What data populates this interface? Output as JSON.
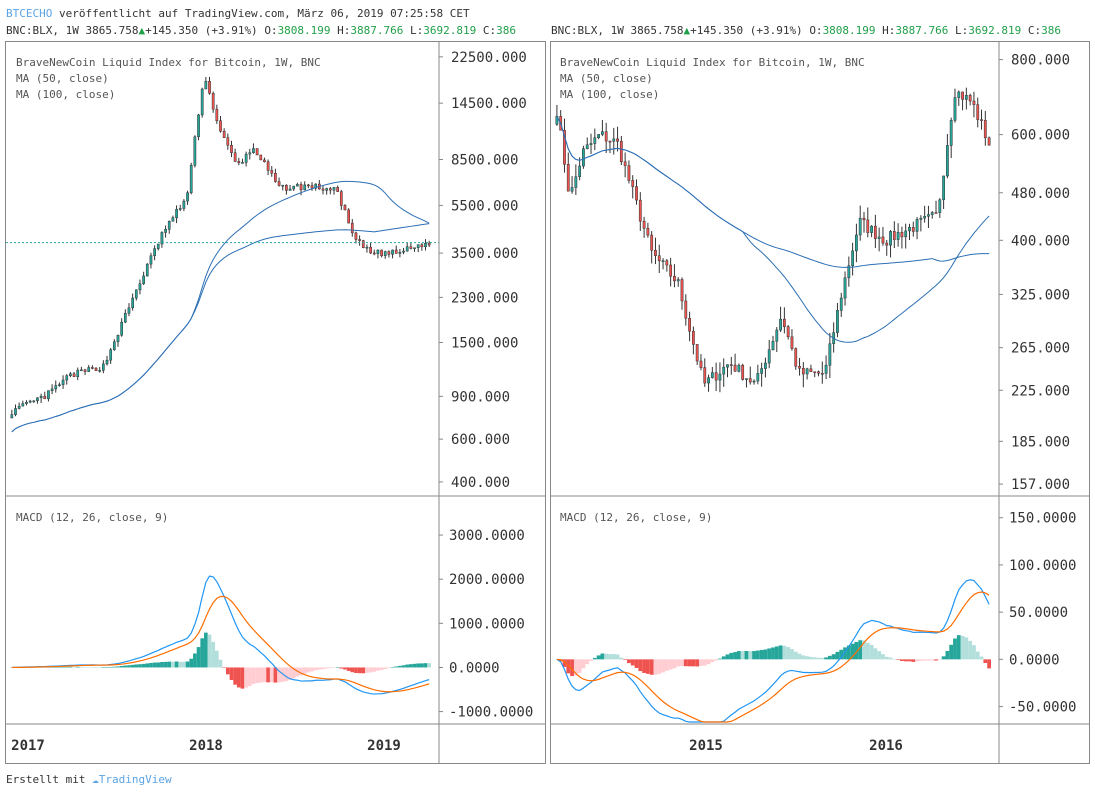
{
  "header": {
    "brand": "BTCECHO",
    "published": "veröffentlicht auf TradingView.com, März 06, 2019 07:25:58 CET",
    "ticker": {
      "symbol": "BNC:BLX, 1W",
      "last": "3865.758",
      "change": "+145.350",
      "change_pct": "(+3.91%)",
      "o_label": "O:",
      "o": "3808.199",
      "h_label": "H:",
      "h": "3887.766",
      "l_label": "L:",
      "l": "3692.819",
      "c_label": "C:",
      "c": "386"
    }
  },
  "colors": {
    "candle_up": "#26a69a",
    "candle_down": "#ef5350",
    "ma_line": "#2c6fb5",
    "macd_line": "#2196f3",
    "signal_line": "#ff6d00",
    "hist_up_strong": "#26a69a",
    "hist_up_weak": "#b2dfdb",
    "hist_down_strong": "#ef5350",
    "hist_down_weak": "#ffcdd2"
  },
  "chart_data": [
    {
      "type": "candlestick",
      "title": "BraveNewCoin Liquid Index for Bitcoin, 1W, BNC",
      "legend": [
        "MA (50, close)",
        "MA (100, close)"
      ],
      "y_scale": "log",
      "y_ticks": [
        "22500.000",
        "14500.000",
        "8500.000",
        "5500.000",
        "3500.000",
        "2300.000",
        "1500.000",
        "900.000",
        "600.000",
        "400.000"
      ],
      "x_ticks": [
        "2017",
        "2018",
        "2019"
      ],
      "last_price": 3865.758,
      "approx_close_path": [
        [
          0,
          780
        ],
        [
          0.08,
          900
        ],
        [
          0.14,
          1100
        ],
        [
          0.22,
          1200
        ],
        [
          0.3,
          2500
        ],
        [
          0.36,
          4200
        ],
        [
          0.42,
          6000
        ],
        [
          0.46,
          19000
        ],
        [
          0.5,
          11000
        ],
        [
          0.54,
          8000
        ],
        [
          0.58,
          9500
        ],
        [
          0.64,
          6500
        ],
        [
          0.72,
          6600
        ],
        [
          0.78,
          6300
        ],
        [
          0.82,
          4000
        ],
        [
          0.86,
          3500
        ],
        [
          0.92,
          3500
        ],
        [
          1.0,
          3866
        ]
      ],
      "macd": {
        "label": "MACD (12, 26, close, 9)",
        "y_ticks": [
          "3000.0000",
          "2000.0000",
          "1000.0000",
          "0.0000",
          "-1000.0000"
        ]
      }
    },
    {
      "type": "candlestick",
      "title": "BraveNewCoin Liquid Index for Bitcoin, 1W, BNC",
      "legend": [
        "MA (50, close)",
        "MA (100, close)"
      ],
      "y_scale": "log",
      "y_ticks": [
        "800.000",
        "600.000",
        "480.000",
        "400.000",
        "325.000",
        "265.000",
        "225.000",
        "185.000",
        "157.000"
      ],
      "x_ticks": [
        "2015",
        "2016"
      ],
      "approx_close_path": [
        [
          0,
          660
        ],
        [
          0.03,
          470
        ],
        [
          0.06,
          560
        ],
        [
          0.1,
          600
        ],
        [
          0.14,
          580
        ],
        [
          0.18,
          470
        ],
        [
          0.22,
          380
        ],
        [
          0.28,
          340
        ],
        [
          0.34,
          230
        ],
        [
          0.4,
          250
        ],
        [
          0.46,
          230
        ],
        [
          0.52,
          300
        ],
        [
          0.56,
          240
        ],
        [
          0.62,
          240
        ],
        [
          0.66,
          330
        ],
        [
          0.7,
          430
        ],
        [
          0.76,
          400
        ],
        [
          0.82,
          420
        ],
        [
          0.88,
          440
        ],
        [
          0.92,
          710
        ],
        [
          0.96,
          680
        ],
        [
          1.0,
          580
        ]
      ],
      "macd": {
        "label": "MACD (12, 26, close, 9)",
        "y_ticks": [
          "150.0000",
          "100.0000",
          "50.0000",
          "0.0000",
          "-50.0000"
        ]
      }
    }
  ],
  "footer": {
    "prefix": "Erstellt mit",
    "logo_text": "TradingView"
  }
}
